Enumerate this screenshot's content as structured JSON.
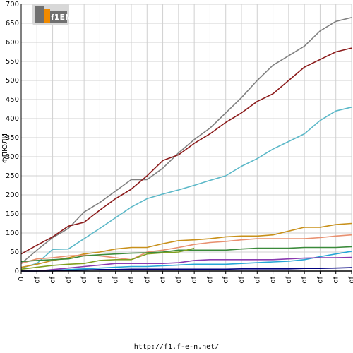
{
  "chart_data": {
    "type": "line",
    "title": "",
    "xlabel": "",
    "ylabel": "ФПЮЛИ",
    "ylim": [
      0,
      700
    ],
    "y_ticks": [
      0,
      50,
      100,
      150,
      200,
      250,
      300,
      350,
      400,
      450,
      500,
      550,
      600,
      650,
      700
    ],
    "x_tick_labels": [
      "0",
      "of",
      "of",
      "of",
      "of",
      "of",
      "of",
      "of",
      "of",
      "of",
      "of",
      "of",
      "of",
      "of",
      "of",
      "of",
      "of",
      "of",
      "of",
      "of",
      "of",
      "of"
    ],
    "grid": true,
    "legend": "none",
    "series": [
      {
        "color": "#808080",
        "values": [
          20,
          55,
          88,
          112,
          155,
          180,
          210,
          240,
          240,
          270,
          310,
          345,
          375,
          415,
          455,
          500,
          540,
          565,
          590,
          630,
          655,
          665
        ]
      },
      {
        "color": "#8b1a1a",
        "values": [
          45,
          68,
          90,
          118,
          128,
          160,
          190,
          215,
          250,
          290,
          305,
          335,
          360,
          390,
          415,
          445,
          465,
          500,
          535,
          555,
          575,
          585
        ]
      },
      {
        "color": "#5bb8c8",
        "values": [
          8,
          20,
          57,
          58,
          85,
          112,
          140,
          168,
          190,
          202,
          213,
          225,
          238,
          250,
          275,
          295,
          320,
          340,
          360,
          395,
          420,
          430
        ]
      },
      {
        "color": "#c8901a",
        "values": [
          10,
          18,
          28,
          35,
          45,
          50,
          58,
          62,
          62,
          72,
          80,
          82,
          85,
          90,
          92,
          92,
          95,
          105,
          115,
          115,
          122,
          125
        ]
      },
      {
        "color": "#e89070",
        "values": [
          20,
          32,
          35,
          40,
          42,
          40,
          35,
          30,
          50,
          55,
          62,
          70,
          75,
          78,
          82,
          85,
          85,
          85,
          85,
          88,
          92,
          95
        ]
      },
      {
        "color": "#3a8a3a",
        "values": [
          25,
          28,
          30,
          32,
          40,
          43,
          45,
          47,
          48,
          50,
          55,
          55,
          55,
          55,
          58,
          60,
          60,
          60,
          62,
          62,
          62,
          64
        ]
      },
      {
        "color": "#80a020",
        "values": [
          5,
          10,
          15,
          18,
          20,
          28,
          30,
          30,
          45,
          48,
          50,
          60
        ]
      },
      {
        "color": "#26a6d6",
        "values": [
          0,
          0,
          2,
          4,
          6,
          8,
          10,
          12,
          12,
          14,
          16,
          18,
          18,
          18,
          20,
          22,
          24,
          26,
          30,
          38,
          45,
          52
        ]
      },
      {
        "color": "#8a3ab0",
        "values": [
          0,
          0,
          4,
          8,
          12,
          16,
          20,
          20,
          20,
          20,
          22,
          28,
          30,
          30,
          30,
          30,
          30,
          32,
          34,
          35,
          35,
          36
        ]
      },
      {
        "color": "#000080",
        "values": [
          0,
          0,
          0,
          2,
          3,
          4,
          4,
          5,
          5,
          5,
          5,
          5,
          5,
          5,
          6,
          6,
          6,
          6,
          7,
          7,
          8,
          9
        ]
      }
    ]
  },
  "footer": {
    "url": "http://f1.f-e-n.net/"
  },
  "logo": {
    "text": "f1EN"
  }
}
